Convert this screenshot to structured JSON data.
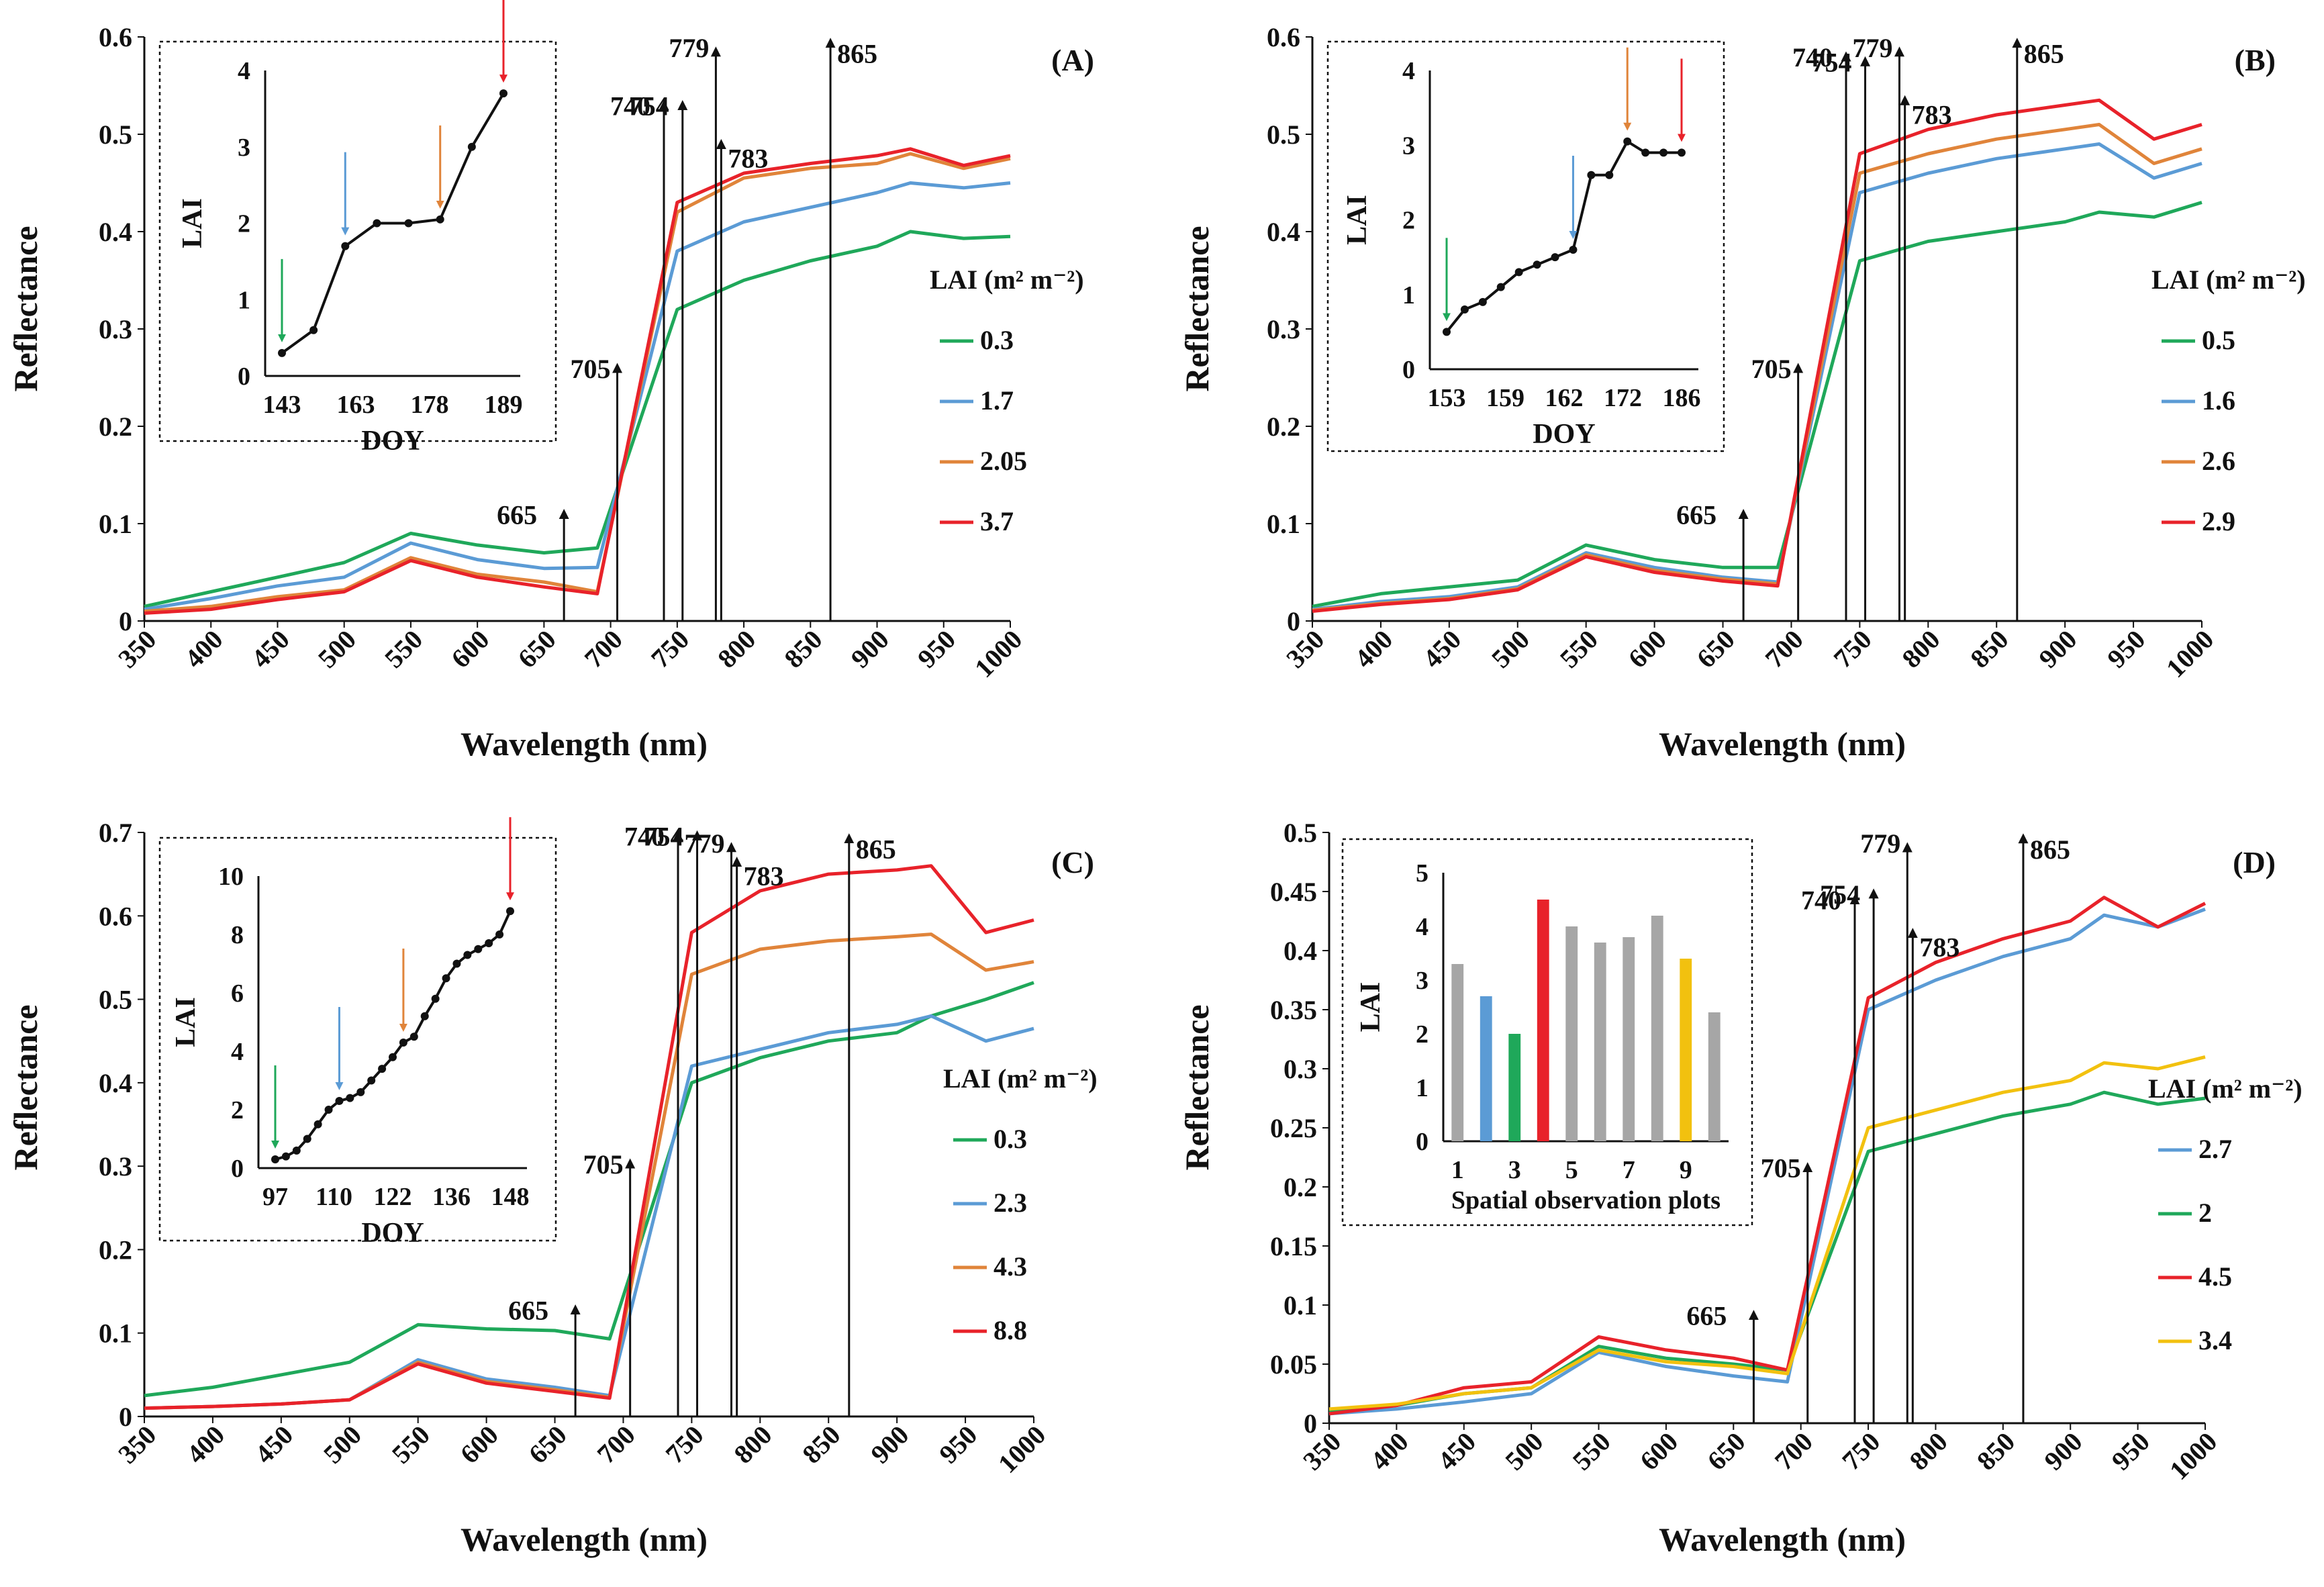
{
  "figure": {
    "x_axis_label": "Wavelength (nm)",
    "y_axis_label": "Reflectance",
    "legend_title": "LAI (m² m⁻²)",
    "inset_y_label": "LAI",
    "marker_wavelengths": [
      665,
      705,
      740,
      754,
      779,
      783,
      865
    ],
    "colors": {
      "green": "#1fa85a",
      "blue": "#5b9bd5",
      "orange": "#e0843a",
      "red": "#e8222a",
      "yellow": "#f2c10f",
      "gray": "#a6a6a6"
    }
  },
  "chart_data": [
    {
      "panel": "(A)",
      "type": "line",
      "xlabel": "Wavelength (nm)",
      "ylabel": "Reflectance",
      "xlim": [
        350,
        1000
      ],
      "xticks": [
        350,
        400,
        450,
        500,
        550,
        600,
        650,
        700,
        750,
        800,
        850,
        900,
        950,
        1000
      ],
      "ylim": [
        0,
        0.6
      ],
      "yticks": [
        0,
        0.1,
        0.2,
        0.3,
        0.4,
        0.5,
        0.6
      ],
      "legend_title": "LAI (m² m⁻²)",
      "series": [
        {
          "name": "0.3",
          "color": "#1fa85a",
          "values": [
            0.015,
            0.03,
            0.045,
            0.06,
            0.09,
            0.078,
            0.07,
            0.075,
            0.32,
            0.35,
            0.37,
            0.385,
            0.4,
            0.393,
            0.395
          ]
        },
        {
          "name": "1.7",
          "color": "#5b9bd5",
          "values": [
            0.012,
            0.023,
            0.036,
            0.045,
            0.08,
            0.063,
            0.054,
            0.055,
            0.38,
            0.41,
            0.425,
            0.44,
            0.45,
            0.445,
            0.45
          ]
        },
        {
          "name": "2.05",
          "color": "#e0843a",
          "values": [
            0.01,
            0.015,
            0.025,
            0.032,
            0.065,
            0.048,
            0.04,
            0.03,
            0.42,
            0.455,
            0.465,
            0.47,
            0.48,
            0.465,
            0.475
          ]
        },
        {
          "name": "3.7",
          "color": "#e8222a",
          "values": [
            0.008,
            0.012,
            0.022,
            0.03,
            0.062,
            0.045,
            0.035,
            0.028,
            0.43,
            0.46,
            0.47,
            0.478,
            0.485,
            0.468,
            0.478
          ]
        }
      ],
      "inset": {
        "type": "line",
        "xlabel": "DOY",
        "ylabel": "LAI",
        "xticks": [
          "143",
          "163",
          "178",
          "189"
        ],
        "ylim": [
          0,
          4
        ],
        "yticks": [
          0,
          1,
          2,
          3,
          4
        ],
        "points": [
          0.3,
          0.6,
          1.7,
          2.0,
          2.0,
          2.05,
          3.0,
          3.7
        ],
        "arrows": [
          {
            "point": 0,
            "color": "#1fa85a"
          },
          {
            "point": 2,
            "color": "#5b9bd5"
          },
          {
            "point": 5,
            "color": "#e0843a"
          },
          {
            "point": 7,
            "color": "#e8222a"
          }
        ]
      }
    },
    {
      "panel": "(B)",
      "type": "line",
      "xlabel": "Wavelength (nm)",
      "ylabel": "Reflectance",
      "xlim": [
        350,
        1000
      ],
      "xticks": [
        350,
        400,
        450,
        500,
        550,
        600,
        650,
        700,
        750,
        800,
        850,
        900,
        950,
        1000
      ],
      "ylim": [
        0,
        0.6
      ],
      "yticks": [
        0,
        0.1,
        0.2,
        0.3,
        0.4,
        0.5,
        0.6
      ],
      "legend_title": "LAI (m² m⁻²)",
      "series": [
        {
          "name": "0.5",
          "color": "#1fa85a",
          "values": [
            0.015,
            0.028,
            0.035,
            0.042,
            0.078,
            0.063,
            0.055,
            0.055,
            0.37,
            0.39,
            0.4,
            0.41,
            0.42,
            0.415,
            0.43
          ]
        },
        {
          "name": "1.6",
          "color": "#5b9bd5",
          "values": [
            0.012,
            0.02,
            0.025,
            0.035,
            0.07,
            0.055,
            0.045,
            0.04,
            0.44,
            0.46,
            0.475,
            0.485,
            0.49,
            0.455,
            0.47
          ]
        },
        {
          "name": "2.6",
          "color": "#e0843a",
          "values": [
            0.011,
            0.018,
            0.023,
            0.033,
            0.068,
            0.052,
            0.043,
            0.038,
            0.46,
            0.48,
            0.495,
            0.505,
            0.51,
            0.47,
            0.485
          ]
        },
        {
          "name": "2.9",
          "color": "#e8222a",
          "values": [
            0.01,
            0.017,
            0.022,
            0.032,
            0.066,
            0.05,
            0.041,
            0.036,
            0.48,
            0.505,
            0.52,
            0.53,
            0.535,
            0.495,
            0.51
          ]
        }
      ],
      "inset": {
        "type": "line",
        "xlabel": "DOY",
        "ylabel": "LAI",
        "xticks": [
          "153",
          "159",
          "162",
          "172",
          "186"
        ],
        "ylim": [
          0,
          4
        ],
        "yticks": [
          0,
          1,
          2,
          3,
          4
        ],
        "points": [
          0.5,
          0.8,
          0.9,
          1.1,
          1.3,
          1.4,
          1.5,
          1.6,
          2.6,
          2.6,
          3.05,
          2.9,
          2.9,
          2.9
        ],
        "arrows": [
          {
            "point": 0,
            "color": "#1fa85a"
          },
          {
            "point": 7,
            "color": "#5b9bd5"
          },
          {
            "point": 10,
            "color": "#e0843a"
          },
          {
            "point": 13,
            "color": "#e8222a"
          }
        ]
      }
    },
    {
      "panel": "(C)",
      "type": "line",
      "xlabel": "Wavelength (nm)",
      "ylabel": "Reflectance",
      "xlim": [
        350,
        1000
      ],
      "xticks": [
        350,
        400,
        450,
        500,
        550,
        600,
        650,
        700,
        750,
        800,
        850,
        900,
        950,
        1000
      ],
      "ylim": [
        0,
        0.7
      ],
      "yticks": [
        0,
        0.1,
        0.2,
        0.3,
        0.4,
        0.5,
        0.6,
        0.7
      ],
      "legend_title": "LAI (m² m⁻²)",
      "series": [
        {
          "name": "0.3",
          "color": "#1fa85a",
          "values": [
            0.025,
            0.035,
            0.05,
            0.065,
            0.11,
            0.105,
            0.103,
            0.093,
            0.4,
            0.43,
            0.45,
            0.46,
            0.48,
            0.5,
            0.52
          ]
        },
        {
          "name": "2.3",
          "color": "#5b9bd5",
          "values": [
            0.01,
            0.012,
            0.015,
            0.02,
            0.068,
            0.045,
            0.035,
            0.025,
            0.42,
            0.44,
            0.46,
            0.47,
            0.48,
            0.45,
            0.465
          ]
        },
        {
          "name": "4.3",
          "color": "#e0843a",
          "values": [
            0.01,
            0.012,
            0.015,
            0.02,
            0.065,
            0.042,
            0.032,
            0.023,
            0.53,
            0.56,
            0.57,
            0.575,
            0.578,
            0.535,
            0.545
          ]
        },
        {
          "name": "8.8",
          "color": "#e8222a",
          "values": [
            0.01,
            0.012,
            0.015,
            0.02,
            0.063,
            0.04,
            0.03,
            0.022,
            0.58,
            0.63,
            0.65,
            0.655,
            0.66,
            0.58,
            0.595
          ]
        }
      ],
      "inset": {
        "type": "line",
        "xlabel": "DOY",
        "ylabel": "LAI",
        "xticks": [
          "97",
          "110",
          "122",
          "136",
          "148"
        ],
        "ylim": [
          0,
          10
        ],
        "yticks": [
          0,
          2,
          4,
          6,
          8,
          10
        ],
        "points": [
          0.3,
          0.4,
          0.6,
          1.0,
          1.5,
          2.0,
          2.3,
          2.4,
          2.6,
          3.0,
          3.4,
          3.8,
          4.3,
          4.5,
          5.2,
          5.8,
          6.5,
          7.0,
          7.3,
          7.5,
          7.7,
          8.0,
          8.8
        ],
        "arrows": [
          {
            "point": 0,
            "color": "#1fa85a"
          },
          {
            "point": 6,
            "color": "#5b9bd5"
          },
          {
            "point": 12,
            "color": "#e0843a"
          },
          {
            "point": 22,
            "color": "#e8222a"
          }
        ]
      }
    },
    {
      "panel": "(D)",
      "type": "line",
      "xlabel": "Wavelength (nm)",
      "ylabel": "Reflectance",
      "xlim": [
        350,
        1000
      ],
      "xticks": [
        350,
        400,
        450,
        500,
        550,
        600,
        650,
        700,
        750,
        800,
        850,
        900,
        950,
        1000
      ],
      "ylim": [
        0,
        0.5
      ],
      "yticks": [
        0,
        0.05,
        0.1,
        0.15,
        0.2,
        0.25,
        0.3,
        0.35,
        0.4,
        0.45,
        0.5
      ],
      "legend_title": "LAI (m² m⁻²)",
      "series": [
        {
          "name": "2.7",
          "color": "#5b9bd5",
          "values": [
            0.008,
            0.012,
            0.018,
            0.025,
            0.06,
            0.048,
            0.04,
            0.035,
            0.35,
            0.375,
            0.395,
            0.41,
            0.43,
            0.42,
            0.435
          ]
        },
        {
          "name": "2",
          "color": "#1fa85a",
          "values": [
            0.01,
            0.015,
            0.025,
            0.03,
            0.065,
            0.055,
            0.05,
            0.045,
            0.23,
            0.245,
            0.26,
            0.27,
            0.28,
            0.27,
            0.275
          ]
        },
        {
          "name": "4.5",
          "color": "#e8222a",
          "values": [
            0.008,
            0.015,
            0.03,
            0.035,
            0.073,
            0.062,
            0.055,
            0.045,
            0.36,
            0.39,
            0.41,
            0.425,
            0.445,
            0.42,
            0.44
          ]
        },
        {
          "name": "3.4",
          "color": "#f2c10f",
          "values": [
            0.012,
            0.016,
            0.025,
            0.03,
            0.062,
            0.052,
            0.048,
            0.042,
            0.25,
            0.265,
            0.28,
            0.29,
            0.305,
            0.3,
            0.31
          ]
        }
      ],
      "inset": {
        "type": "bar",
        "xlabel": "Spatial observation plots",
        "ylabel": "LAI",
        "xticks": [
          "1",
          "3",
          "5",
          "7",
          "9"
        ],
        "ylim": [
          0,
          5
        ],
        "yticks": [
          0,
          1,
          2,
          3,
          4,
          5
        ],
        "categories": [
          "1",
          "2",
          "3",
          "4",
          "5",
          "6",
          "7",
          "8",
          "9",
          "10"
        ],
        "values": [
          3.3,
          2.7,
          2.0,
          4.5,
          4.0,
          3.7,
          3.8,
          4.2,
          3.4,
          2.4
        ],
        "bar_colors": [
          "#a6a6a6",
          "#5b9bd5",
          "#1fa85a",
          "#e8222a",
          "#a6a6a6",
          "#a6a6a6",
          "#a6a6a6",
          "#a6a6a6",
          "#f2c10f",
          "#a6a6a6"
        ]
      }
    }
  ]
}
